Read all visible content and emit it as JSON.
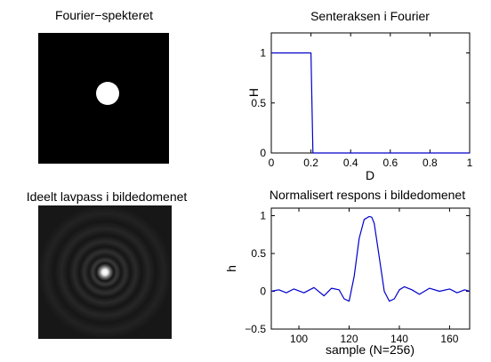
{
  "panels": {
    "spectrum": {
      "title": "Fourier−spekteret"
    },
    "spatial": {
      "title": "Ideelt lavpass i bildedomenet"
    }
  },
  "colors": {
    "line": "#0000cc",
    "axes": "#000000",
    "background": "#ffffff"
  },
  "chart_data": [
    {
      "type": "line",
      "title": "Senteraksen i Fourier",
      "xlabel": "D",
      "ylabel": "H",
      "xlim": [
        0,
        1
      ],
      "ylim": [
        0,
        1.2
      ],
      "xticks": [
        "0",
        "0.2",
        "0.4",
        "0.6",
        "0.8",
        "1"
      ],
      "yticks": [
        "0",
        "0.5",
        "1"
      ],
      "grid": false,
      "series": [
        {
          "x": [
            0,
            0.2,
            0.2,
            0.21,
            1
          ],
          "y": [
            1,
            1,
            1,
            0,
            0
          ]
        }
      ]
    },
    {
      "type": "line",
      "title": "Normalisert respons i bildedomenet",
      "xlabel": "sample (N=256)",
      "ylabel": "h",
      "xlim": [
        89,
        168
      ],
      "ylim": [
        -0.5,
        1.1
      ],
      "xticks": [
        "100",
        "120",
        "140",
        "160"
      ],
      "yticks": [
        "−0.5",
        "0",
        "0.5",
        "1"
      ],
      "grid": false,
      "series": [
        {
          "x": [
            89,
            92,
            95,
            98,
            102,
            106,
            110,
            113,
            116,
            118,
            120,
            122,
            124,
            126,
            128,
            129,
            130,
            132,
            134,
            136,
            138,
            140,
            142,
            145,
            148,
            152,
            156,
            160,
            163,
            166,
            168
          ],
          "y": [
            0.0,
            0.02,
            -0.02,
            0.03,
            -0.02,
            0.05,
            -0.06,
            0.04,
            0.02,
            -0.1,
            -0.13,
            0.2,
            0.7,
            0.95,
            0.99,
            0.98,
            0.9,
            0.45,
            0.0,
            -0.13,
            -0.1,
            0.02,
            0.06,
            0.02,
            -0.04,
            0.04,
            0.0,
            0.03,
            -0.02,
            0.02,
            0.0
          ]
        }
      ]
    }
  ]
}
